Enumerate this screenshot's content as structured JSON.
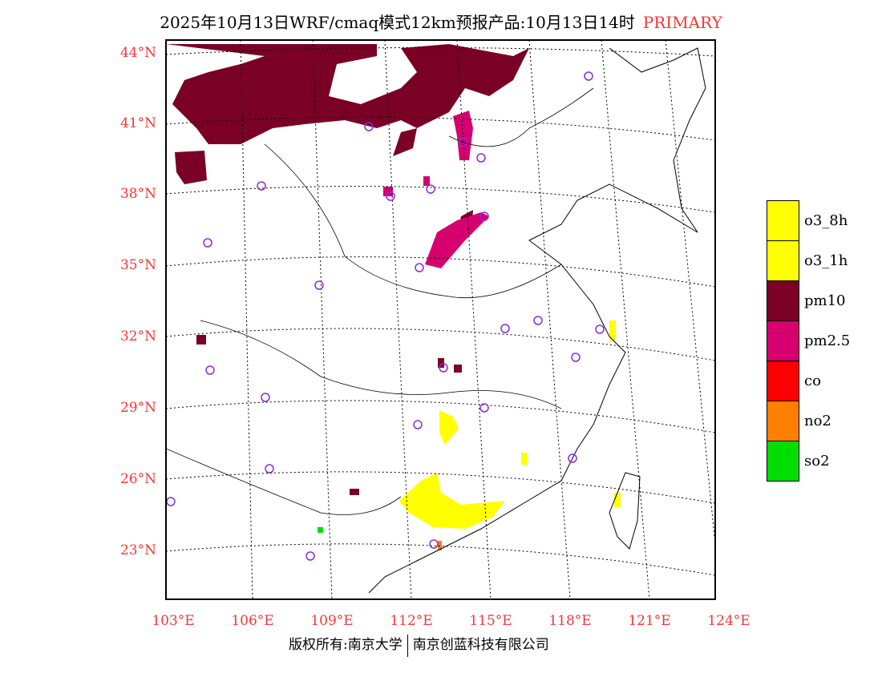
{
  "title": {
    "text": "2025年10月13日WRF/cmaq模式12km预报产品:10月13日14时",
    "tag": "PRIMARY"
  },
  "lat_labels": [
    "44°N",
    "41°N",
    "38°N",
    "35°N",
    "32°N",
    "29°N",
    "26°N",
    "23°N"
  ],
  "lon_labels": [
    "103°E",
    "106°E",
    "109°E",
    "112°E",
    "115°E",
    "118°E",
    "121°E",
    "124°E"
  ],
  "legend": [
    {
      "label": "o3_8h",
      "color": "#ffff00"
    },
    {
      "label": "o3_1h",
      "color": "#ffff00"
    },
    {
      "label": "pm10",
      "color": "#7a0025"
    },
    {
      "label": "pm2.5",
      "color": "#d6006e"
    },
    {
      "label": "co",
      "color": "#ff0000"
    },
    {
      "label": "no2",
      "color": "#ff7f00"
    },
    {
      "label": "so2",
      "color": "#00dd00"
    }
  ],
  "footer": {
    "left": "版权所有:南京大学",
    "right": "南京创蓝科技有限公司"
  }
}
